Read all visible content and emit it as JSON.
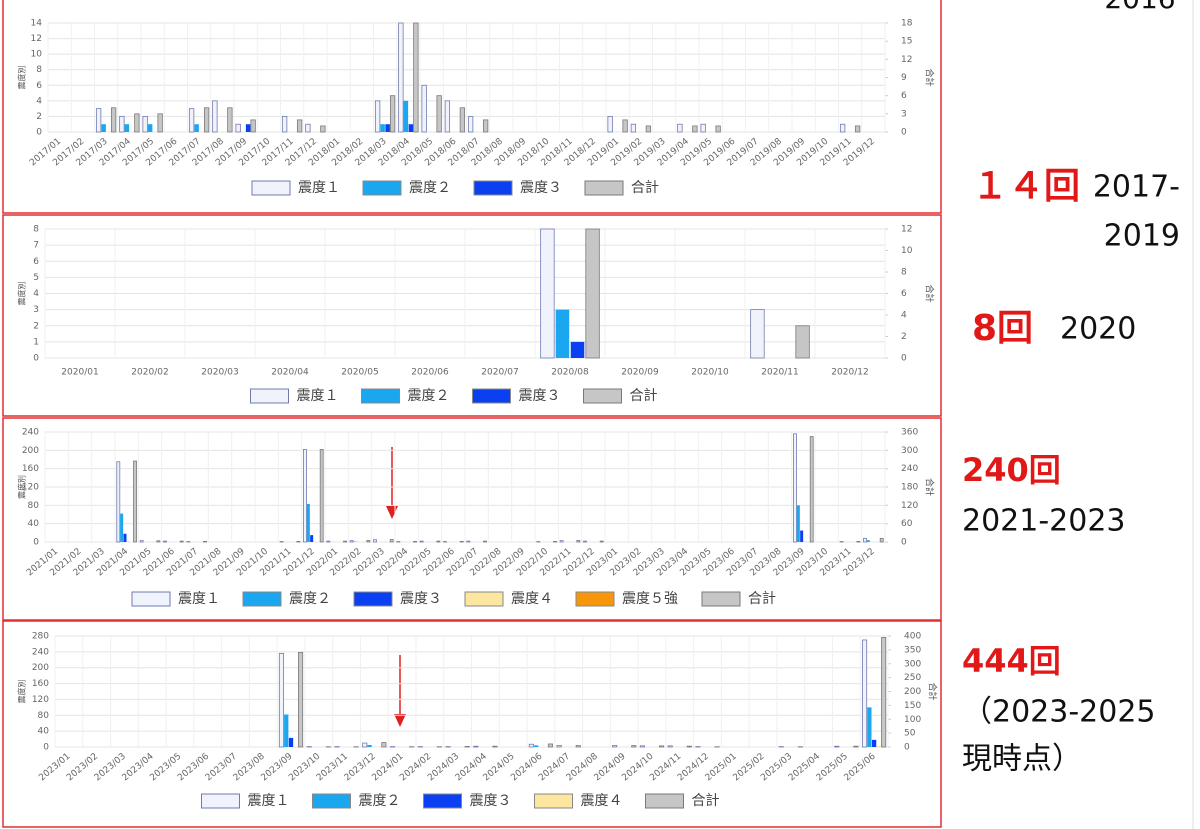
{
  "cut_text": "2016",
  "side_notes": [
    {
      "count": "１４回",
      "period": [
        "2017-",
        "2019"
      ]
    },
    {
      "count": "8回",
      "period": [
        "2020"
      ]
    },
    {
      "count": "240回",
      "period": [
        "2021-2023"
      ]
    },
    {
      "count": "444回",
      "period": [
        "（2023-2025",
        "現時点）"
      ]
    }
  ],
  "chart_data": [
    {
      "type": "bar",
      "ylabel": "震度別",
      "y2label": "合計",
      "grid": true,
      "legend": "bottom",
      "categories": [
        "2017/01",
        "2017/02",
        "2017/03",
        "2017/04",
        "2017/05",
        "2017/06",
        "2017/07",
        "2017/08",
        "2017/09",
        "2017/10",
        "2017/11",
        "2017/12",
        "2018/01",
        "2018/02",
        "2018/03",
        "2018/04",
        "2018/05",
        "2018/06",
        "2018/07",
        "2018/08",
        "2018/09",
        "2018/10",
        "2018/11",
        "2018/12",
        "2019/01",
        "2019/02",
        "2019/03",
        "2019/04",
        "2019/05",
        "2019/06",
        "2019/07",
        "2019/08",
        "2019/09",
        "2019/10",
        "2019/11",
        "2019/12"
      ],
      "ylim": [
        0,
        14
      ],
      "yticks": [
        0,
        2,
        4,
        6,
        8,
        10,
        12,
        14
      ],
      "y2lim": [
        0,
        18
      ],
      "y2ticks": [
        0,
        3,
        6,
        9,
        12,
        15,
        18
      ],
      "series": [
        {
          "name": "震度１",
          "color": "#f1f3fc",
          "values": [
            0,
            0,
            3,
            2,
            2,
            0,
            3,
            4,
            1,
            0,
            2,
            1,
            0,
            0,
            4,
            14,
            6,
            4,
            2,
            0,
            0,
            0,
            0,
            0,
            2,
            1,
            0,
            1,
            1,
            0,
            0,
            0,
            0,
            0,
            1,
            0
          ]
        },
        {
          "name": "震度２",
          "color": "#1ba6f0",
          "values": [
            0,
            0,
            1,
            1,
            1,
            0,
            1,
            0,
            0,
            0,
            0,
            0,
            0,
            0,
            1,
            4,
            0,
            0,
            0,
            0,
            0,
            0,
            0,
            0,
            0,
            0,
            0,
            0,
            0,
            0,
            0,
            0,
            0,
            0,
            0,
            0
          ]
        },
        {
          "name": "震度３",
          "color": "#0b3ff2",
          "values": [
            0,
            0,
            0,
            0,
            0,
            0,
            0,
            0,
            1,
            0,
            0,
            0,
            0,
            0,
            1,
            1,
            0,
            0,
            0,
            0,
            0,
            0,
            0,
            0,
            0,
            0,
            0,
            0,
            0,
            0,
            0,
            0,
            0,
            0,
            0,
            0
          ]
        },
        {
          "name": "合計",
          "color": "#c6c6c6",
          "axis": "y2",
          "values": [
            0,
            0,
            4,
            3,
            3,
            0,
            4,
            4,
            2,
            0,
            2,
            1,
            0,
            0,
            6,
            18,
            6,
            4,
            2,
            0,
            0,
            0,
            0,
            0,
            2,
            1,
            0,
            1,
            1,
            0,
            0,
            0,
            0,
            0,
            1,
            0
          ]
        }
      ]
    },
    {
      "type": "bar",
      "ylabel": "震度別",
      "y2label": "合計",
      "grid": true,
      "legend": "bottom",
      "categories": [
        "2020/01",
        "2020/02",
        "2020/03",
        "2020/04",
        "2020/05",
        "2020/06",
        "2020/07",
        "2020/08",
        "2020/09",
        "2020/10",
        "2020/11",
        "2020/12"
      ],
      "ylim": [
        0,
        8
      ],
      "yticks": [
        0,
        1,
        2,
        3,
        4,
        5,
        6,
        7,
        8
      ],
      "y2lim": [
        0,
        12
      ],
      "y2ticks": [
        0,
        2,
        4,
        6,
        8,
        10,
        12
      ],
      "series": [
        {
          "name": "震度１",
          "color": "#f1f3fc",
          "values": [
            0,
            0,
            0,
            0,
            0,
            0,
            0,
            8,
            0,
            0,
            3,
            0
          ]
        },
        {
          "name": "震度２",
          "color": "#1ba6f0",
          "values": [
            0,
            0,
            0,
            0,
            0,
            0,
            0,
            3,
            0,
            0,
            0,
            0
          ]
        },
        {
          "name": "震度３",
          "color": "#0b3ff2",
          "values": [
            0,
            0,
            0,
            0,
            0,
            0,
            0,
            1,
            0,
            0,
            0,
            0
          ]
        },
        {
          "name": "合計",
          "color": "#c6c6c6",
          "axis": "y2",
          "values": [
            0,
            0,
            0,
            0,
            0,
            0,
            0,
            12,
            0,
            0,
            3,
            0
          ]
        }
      ]
    },
    {
      "type": "bar",
      "ylabel": "震度別",
      "y2label": "合計",
      "grid": true,
      "legend": "bottom",
      "categories": [
        "2021/01",
        "2021/02",
        "2021/03",
        "2021/04",
        "2021/05",
        "2021/06",
        "2021/07",
        "2021/08",
        "2021/09",
        "2021/10",
        "2021/11",
        "2021/12",
        "2022/01",
        "2022/02",
        "2022/03",
        "2022/04",
        "2022/05",
        "2022/06",
        "2022/07",
        "2022/08",
        "2022/09",
        "2022/10",
        "2022/11",
        "2022/12",
        "2023/01",
        "2023/02",
        "2023/03",
        "2023/04",
        "2023/05",
        "2023/06",
        "2023/07",
        "2023/08",
        "2023/09",
        "2023/10",
        "2023/11",
        "2023/12"
      ],
      "ylim": [
        0,
        240
      ],
      "yticks": [
        0,
        40,
        80,
        120,
        160,
        200,
        240
      ],
      "y2lim": [
        0,
        360
      ],
      "y2ticks": [
        0,
        60,
        120,
        180,
        240,
        300,
        360
      ],
      "series": [
        {
          "name": "震度１",
          "color": "#f1f3fc",
          "values": [
            0,
            0,
            0,
            175,
            3,
            2,
            1,
            0,
            0,
            0,
            1,
            202,
            2,
            3,
            5,
            1,
            2,
            1,
            2,
            0,
            0,
            1,
            3,
            2,
            0,
            0,
            0,
            0,
            0,
            0,
            0,
            0,
            236,
            0,
            1,
            8
          ]
        },
        {
          "name": "震度２",
          "color": "#1ba6f0",
          "values": [
            0,
            0,
            0,
            62,
            0,
            0,
            0,
            0,
            0,
            0,
            0,
            83,
            0,
            1,
            0,
            0,
            0,
            0,
            0,
            0,
            0,
            0,
            0,
            0,
            0,
            0,
            0,
            0,
            0,
            0,
            0,
            0,
            80,
            0,
            0,
            4
          ]
        },
        {
          "name": "震度３",
          "color": "#0b3ff2",
          "values": [
            0,
            0,
            0,
            18,
            0,
            0,
            0,
            0,
            0,
            0,
            0,
            15,
            0,
            0,
            0,
            0,
            0,
            0,
            0,
            0,
            0,
            0,
            0,
            0,
            0,
            0,
            0,
            0,
            0,
            0,
            0,
            0,
            25,
            0,
            0,
            0
          ]
        },
        {
          "name": "震度４",
          "color": "#fde6a0",
          "values": [
            0,
            0,
            0,
            2,
            0,
            0,
            0,
            0,
            0,
            0,
            0,
            1,
            0,
            0,
            0,
            0,
            0,
            0,
            0,
            0,
            0,
            0,
            0,
            0,
            0,
            0,
            0,
            0,
            0,
            0,
            0,
            0,
            2,
            0,
            0,
            0
          ]
        },
        {
          "name": "震度５強",
          "color": "#f5960b",
          "values": [
            0,
            0,
            0,
            0,
            0,
            0,
            0,
            0,
            0,
            0,
            0,
            0,
            0,
            0,
            0,
            0,
            0,
            0,
            0,
            0,
            0,
            0,
            0,
            0,
            0,
            0,
            0,
            0,
            0,
            0,
            0,
            0,
            0,
            0,
            0,
            0
          ]
        },
        {
          "name": "合計",
          "color": "#c6c6c6",
          "axis": "y2",
          "values": [
            0,
            0,
            0,
            265,
            4,
            3,
            2,
            0,
            0,
            0,
            2,
            303,
            3,
            5,
            8,
            2,
            3,
            2,
            3,
            0,
            0,
            2,
            5,
            3,
            0,
            0,
            0,
            0,
            0,
            0,
            0,
            0,
            345,
            0,
            2,
            12
          ]
        }
      ]
    },
    {
      "type": "bar",
      "ylabel": "震度別",
      "y2label": "合計",
      "grid": true,
      "legend": "bottom",
      "categories": [
        "2023/01",
        "2023/02",
        "2023/03",
        "2023/04",
        "2023/05",
        "2023/06",
        "2023/07",
        "2023/08",
        "2023/09",
        "2023/10",
        "2023/11",
        "2023/12",
        "2024/01",
        "2024/02",
        "2024/03",
        "2024/04",
        "2024/05",
        "2024/06",
        "2024/07",
        "2024/08",
        "2024/09",
        "2024/10",
        "2024/11",
        "2024/12",
        "2025/01",
        "2025/02",
        "2025/03",
        "2025/04",
        "2025/05",
        "2025/06"
      ],
      "ylim": [
        0,
        280
      ],
      "yticks": [
        0,
        40,
        80,
        120,
        160,
        200,
        240,
        280
      ],
      "y2lim": [
        0,
        400
      ],
      "y2ticks": [
        0,
        50,
        100,
        150,
        200,
        250,
        300,
        350,
        400
      ],
      "series": [
        {
          "name": "震度１",
          "color": "#f1f3fc",
          "values": [
            0,
            0,
            0,
            0,
            0,
            0,
            0,
            0,
            236,
            1,
            1,
            10,
            1,
            1,
            1,
            2,
            0,
            7,
            4,
            0,
            4,
            3,
            3,
            1,
            0,
            0,
            1,
            0,
            2,
            270
          ]
        },
        {
          "name": "震度２",
          "color": "#1ba6f0",
          "values": [
            0,
            0,
            0,
            0,
            0,
            0,
            0,
            0,
            82,
            0,
            0,
            5,
            0,
            0,
            0,
            0,
            0,
            4,
            0,
            0,
            0,
            0,
            0,
            0,
            0,
            0,
            0,
            0,
            0,
            100
          ]
        },
        {
          "name": "震度３",
          "color": "#0b3ff2",
          "values": [
            0,
            0,
            0,
            0,
            0,
            0,
            0,
            0,
            23,
            0,
            0,
            0,
            0,
            0,
            0,
            0,
            0,
            0,
            0,
            0,
            0,
            0,
            0,
            0,
            0,
            0,
            0,
            0,
            0,
            18
          ]
        },
        {
          "name": "震度４",
          "color": "#fde6a0",
          "values": [
            0,
            0,
            0,
            0,
            0,
            0,
            0,
            0,
            1,
            0,
            0,
            0,
            0,
            0,
            0,
            0,
            0,
            0,
            0,
            0,
            0,
            0,
            0,
            0,
            0,
            0,
            0,
            0,
            0,
            3
          ]
        },
        {
          "name": "合計",
          "color": "#c6c6c6",
          "axis": "y2",
          "values": [
            0,
            0,
            0,
            0,
            0,
            0,
            0,
            0,
            341,
            1,
            1,
            16,
            1,
            1,
            2,
            3,
            0,
            11,
            5,
            0,
            5,
            4,
            3,
            1,
            0,
            0,
            1,
            0,
            3,
            395
          ]
        }
      ]
    }
  ]
}
